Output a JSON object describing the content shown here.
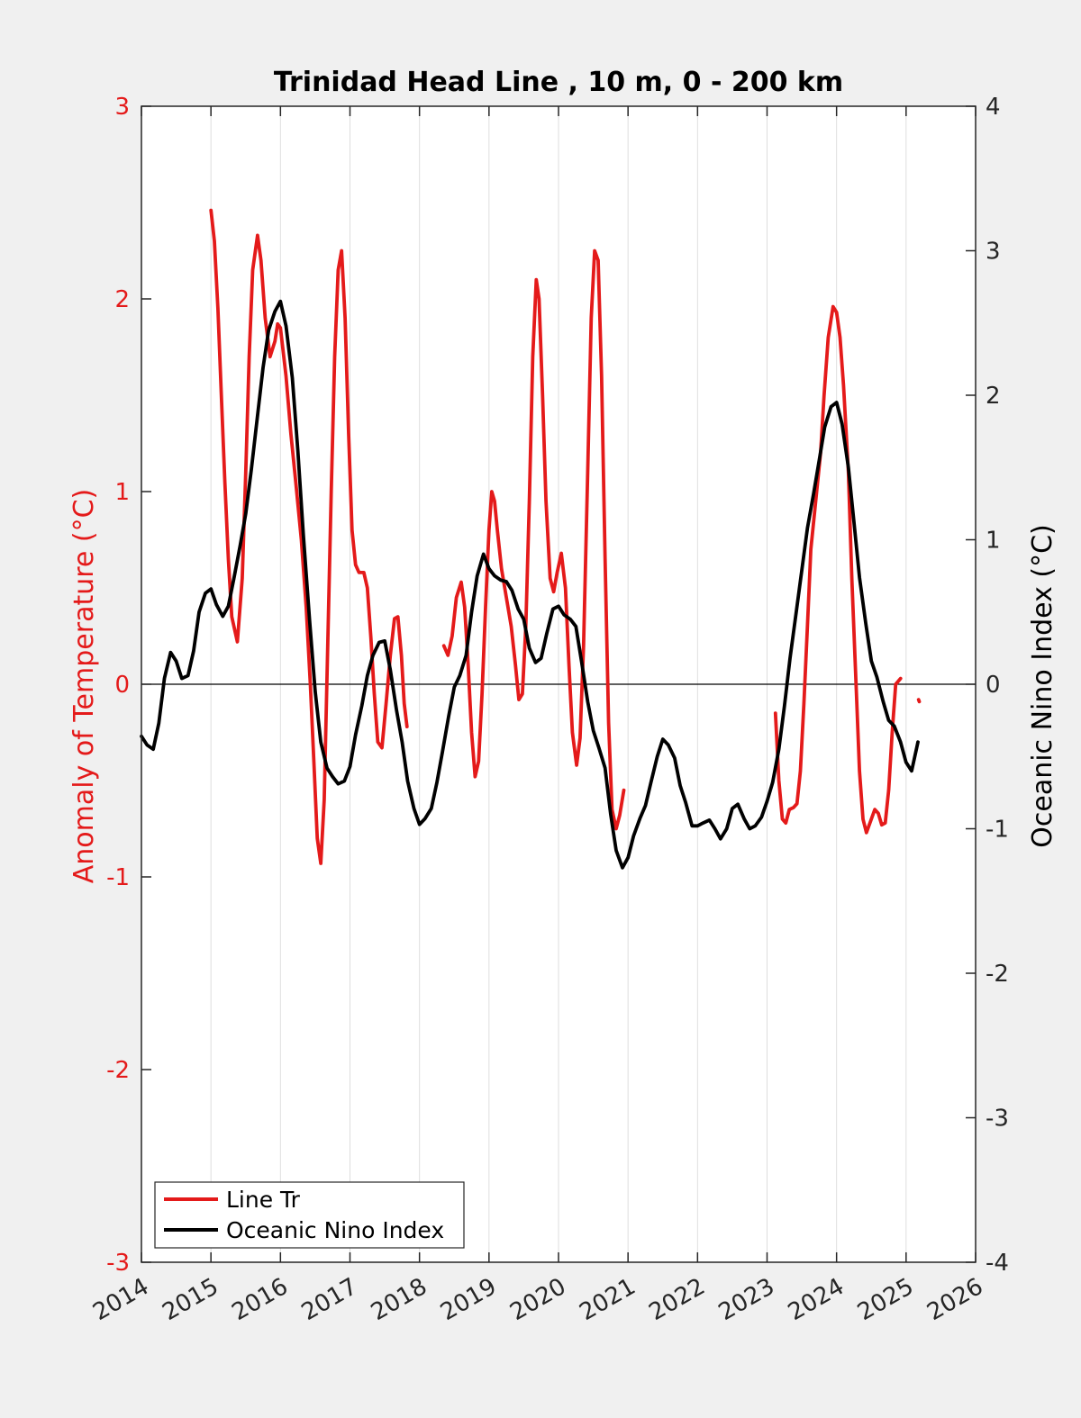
{
  "chart_data": {
    "type": "line",
    "title": "Trinidad Head Line , 10 m, 0 - 200 km",
    "xlabel": "",
    "xlim": [
      2014,
      2026
    ],
    "x_ticks": [
      "2014",
      "2015",
      "2016",
      "2017",
      "2018",
      "2019",
      "2020",
      "2021",
      "2022",
      "2023",
      "2024",
      "2025",
      "2026"
    ],
    "y_left": {
      "label": "Anomaly of Temperature (°C)",
      "ylim": [
        -3,
        3
      ],
      "ticks": [
        "-3",
        "-2",
        "-1",
        "0",
        "1",
        "2",
        "3"
      ]
    },
    "y_right": {
      "label": "Oceanic Nino Index (°C)",
      "ylim": [
        -4,
        4
      ],
      "ticks": [
        "-4",
        "-3",
        "-2",
        "-1",
        "0",
        "1",
        "2",
        "3",
        "4"
      ]
    },
    "grid": "vertical",
    "legend": "bottom-left",
    "series": [
      {
        "name": "Line Tr",
        "axis": "left",
        "color": "#e41a1a",
        "segments": [
          [
            [
              2015.0,
              2.46
            ],
            [
              2015.05,
              2.3
            ],
            [
              2015.1,
              1.95
            ],
            [
              2015.15,
              1.5
            ],
            [
              2015.2,
              1.05
            ],
            [
              2015.25,
              0.65
            ],
            [
              2015.3,
              0.35
            ],
            [
              2015.38,
              0.22
            ],
            [
              2015.45,
              0.55
            ],
            [
              2015.5,
              1.1
            ],
            [
              2015.55,
              1.7
            ],
            [
              2015.6,
              2.15
            ],
            [
              2015.67,
              2.33
            ],
            [
              2015.72,
              2.2
            ],
            [
              2015.78,
              1.9
            ],
            [
              2015.85,
              1.7
            ],
            [
              2015.92,
              1.78
            ],
            [
              2015.96,
              1.87
            ],
            [
              2016.0,
              1.85
            ],
            [
              2016.08,
              1.6
            ],
            [
              2016.15,
              1.3
            ],
            [
              2016.22,
              1.05
            ],
            [
              2016.3,
              0.75
            ],
            [
              2016.37,
              0.4
            ],
            [
              2016.43,
              0.0
            ],
            [
              2016.48,
              -0.4
            ],
            [
              2016.53,
              -0.8
            ],
            [
              2016.58,
              -0.93
            ],
            [
              2016.63,
              -0.6
            ],
            [
              2016.68,
              0.2
            ],
            [
              2016.73,
              1.0
            ],
            [
              2016.78,
              1.7
            ],
            [
              2016.83,
              2.15
            ],
            [
              2016.88,
              2.25
            ],
            [
              2016.93,
              1.9
            ],
            [
              2016.98,
              1.3
            ],
            [
              2017.03,
              0.8
            ],
            [
              2017.08,
              0.62
            ],
            [
              2017.13,
              0.58
            ],
            [
              2017.2,
              0.58
            ],
            [
              2017.25,
              0.5
            ],
            [
              2017.3,
              0.25
            ],
            [
              2017.35,
              -0.05
            ],
            [
              2017.4,
              -0.3
            ],
            [
              2017.46,
              -0.33
            ],
            [
              2017.52,
              -0.1
            ],
            [
              2017.58,
              0.15
            ],
            [
              2017.64,
              0.34
            ],
            [
              2017.69,
              0.35
            ],
            [
              2017.74,
              0.15
            ],
            [
              2017.78,
              -0.1
            ],
            [
              2017.82,
              -0.22
            ]
          ],
          [
            [
              2018.35,
              0.2
            ],
            [
              2018.41,
              0.15
            ],
            [
              2018.47,
              0.25
            ],
            [
              2018.53,
              0.45
            ],
            [
              2018.6,
              0.53
            ],
            [
              2018.65,
              0.4
            ],
            [
              2018.7,
              0.1
            ],
            [
              2018.75,
              -0.25
            ],
            [
              2018.8,
              -0.48
            ],
            [
              2018.85,
              -0.4
            ],
            [
              2018.9,
              -0.05
            ],
            [
              2018.95,
              0.4
            ],
            [
              2019.0,
              0.8
            ],
            [
              2019.04,
              1.0
            ],
            [
              2019.08,
              0.95
            ],
            [
              2019.12,
              0.8
            ],
            [
              2019.18,
              0.6
            ],
            [
              2019.25,
              0.45
            ],
            [
              2019.32,
              0.3
            ],
            [
              2019.38,
              0.1
            ],
            [
              2019.43,
              -0.08
            ],
            [
              2019.48,
              -0.05
            ],
            [
              2019.53,
              0.3
            ],
            [
              2019.58,
              0.95
            ],
            [
              2019.63,
              1.7
            ],
            [
              2019.68,
              2.1
            ],
            [
              2019.72,
              2.0
            ],
            [
              2019.77,
              1.5
            ],
            [
              2019.82,
              0.95
            ],
            [
              2019.88,
              0.55
            ],
            [
              2019.93,
              0.48
            ],
            [
              2019.98,
              0.58
            ],
            [
              2020.04,
              0.68
            ],
            [
              2020.1,
              0.5
            ],
            [
              2020.15,
              0.1
            ],
            [
              2020.2,
              -0.25
            ],
            [
              2020.26,
              -0.42
            ],
            [
              2020.31,
              -0.28
            ],
            [
              2020.36,
              0.2
            ],
            [
              2020.42,
              1.1
            ],
            [
              2020.47,
              1.9
            ],
            [
              2020.52,
              2.25
            ],
            [
              2020.57,
              2.2
            ],
            [
              2020.62,
              1.6
            ],
            [
              2020.67,
              0.65
            ],
            [
              2020.72,
              -0.2
            ],
            [
              2020.77,
              -0.65
            ],
            [
              2020.83,
              -0.75
            ],
            [
              2020.88,
              -0.68
            ],
            [
              2020.94,
              -0.55
            ]
          ],
          [
            [
              2023.12,
              -0.15
            ],
            [
              2023.17,
              -0.5
            ],
            [
              2023.22,
              -0.7
            ],
            [
              2023.27,
              -0.72
            ],
            [
              2023.32,
              -0.65
            ],
            [
              2023.38,
              -0.64
            ],
            [
              2023.43,
              -0.62
            ],
            [
              2023.48,
              -0.45
            ],
            [
              2023.53,
              -0.1
            ],
            [
              2023.58,
              0.3
            ],
            [
              2023.63,
              0.7
            ],
            [
              2023.7,
              0.95
            ],
            [
              2023.77,
              1.2
            ],
            [
              2023.82,
              1.5
            ],
            [
              2023.88,
              1.8
            ],
            [
              2023.95,
              1.96
            ],
            [
              2024.0,
              1.93
            ],
            [
              2024.05,
              1.8
            ],
            [
              2024.1,
              1.55
            ],
            [
              2024.17,
              1.1
            ],
            [
              2024.22,
              0.55
            ],
            [
              2024.28,
              0.0
            ],
            [
              2024.33,
              -0.45
            ],
            [
              2024.38,
              -0.7
            ],
            [
              2024.43,
              -0.77
            ],
            [
              2024.48,
              -0.72
            ],
            [
              2024.55,
              -0.65
            ],
            [
              2024.6,
              -0.67
            ],
            [
              2024.65,
              -0.73
            ],
            [
              2024.7,
              -0.72
            ],
            [
              2024.75,
              -0.55
            ],
            [
              2024.8,
              -0.25
            ],
            [
              2024.85,
              0.0
            ],
            [
              2024.92,
              0.03
            ]
          ],
          [
            [
              2025.18,
              -0.08
            ],
            [
              2025.19,
              -0.09
            ]
          ]
        ]
      },
      {
        "name": "Oceanic Nino Index",
        "axis": "right",
        "color": "#000000",
        "points": [
          [
            2014.0,
            -0.36
          ],
          [
            2014.08,
            -0.42
          ],
          [
            2014.17,
            -0.45
          ],
          [
            2014.25,
            -0.27
          ],
          [
            2014.33,
            0.04
          ],
          [
            2014.42,
            0.22
          ],
          [
            2014.5,
            0.16
          ],
          [
            2014.58,
            0.04
          ],
          [
            2014.67,
            0.06
          ],
          [
            2014.75,
            0.23
          ],
          [
            2014.83,
            0.5
          ],
          [
            2014.92,
            0.63
          ],
          [
            2015.0,
            0.66
          ],
          [
            2015.08,
            0.55
          ],
          [
            2015.17,
            0.47
          ],
          [
            2015.25,
            0.54
          ],
          [
            2015.33,
            0.73
          ],
          [
            2015.42,
            0.96
          ],
          [
            2015.5,
            1.18
          ],
          [
            2015.58,
            1.48
          ],
          [
            2015.67,
            1.86
          ],
          [
            2015.75,
            2.19
          ],
          [
            2015.83,
            2.45
          ],
          [
            2015.92,
            2.58
          ],
          [
            2016.0,
            2.65
          ],
          [
            2016.08,
            2.48
          ],
          [
            2016.17,
            2.12
          ],
          [
            2016.25,
            1.62
          ],
          [
            2016.33,
            1.03
          ],
          [
            2016.42,
            0.44
          ],
          [
            2016.5,
            -0.05
          ],
          [
            2016.58,
            -0.4
          ],
          [
            2016.67,
            -0.58
          ],
          [
            2016.75,
            -0.64
          ],
          [
            2016.83,
            -0.69
          ],
          [
            2016.92,
            -0.67
          ],
          [
            2017.0,
            -0.57
          ],
          [
            2017.08,
            -0.35
          ],
          [
            2017.17,
            -0.15
          ],
          [
            2017.25,
            0.06
          ],
          [
            2017.33,
            0.2
          ],
          [
            2017.42,
            0.29
          ],
          [
            2017.5,
            0.3
          ],
          [
            2017.58,
            0.1
          ],
          [
            2017.67,
            -0.18
          ],
          [
            2017.75,
            -0.4
          ],
          [
            2017.83,
            -0.67
          ],
          [
            2017.92,
            -0.86
          ],
          [
            2018.0,
            -0.97
          ],
          [
            2018.08,
            -0.93
          ],
          [
            2018.17,
            -0.86
          ],
          [
            2018.25,
            -0.68
          ],
          [
            2018.33,
            -0.47
          ],
          [
            2018.42,
            -0.22
          ],
          [
            2018.5,
            -0.02
          ],
          [
            2018.58,
            0.06
          ],
          [
            2018.67,
            0.2
          ],
          [
            2018.75,
            0.5
          ],
          [
            2018.83,
            0.75
          ],
          [
            2018.92,
            0.9
          ],
          [
            2019.0,
            0.8
          ],
          [
            2019.08,
            0.75
          ],
          [
            2019.17,
            0.72
          ],
          [
            2019.25,
            0.71
          ],
          [
            2019.33,
            0.65
          ],
          [
            2019.42,
            0.52
          ],
          [
            2019.5,
            0.45
          ],
          [
            2019.58,
            0.25
          ],
          [
            2019.67,
            0.15
          ],
          [
            2019.75,
            0.18
          ],
          [
            2019.83,
            0.35
          ],
          [
            2019.92,
            0.52
          ],
          [
            2020.0,
            0.54
          ],
          [
            2020.08,
            0.48
          ],
          [
            2020.17,
            0.45
          ],
          [
            2020.25,
            0.4
          ],
          [
            2020.33,
            0.16
          ],
          [
            2020.42,
            -0.12
          ],
          [
            2020.5,
            -0.32
          ],
          [
            2020.58,
            -0.44
          ],
          [
            2020.67,
            -0.58
          ],
          [
            2020.75,
            -0.9
          ],
          [
            2020.83,
            -1.15
          ],
          [
            2020.92,
            -1.27
          ],
          [
            2021.0,
            -1.2
          ],
          [
            2021.08,
            -1.05
          ],
          [
            2021.17,
            -0.93
          ],
          [
            2021.25,
            -0.84
          ],
          [
            2021.33,
            -0.68
          ],
          [
            2021.42,
            -0.5
          ],
          [
            2021.5,
            -0.38
          ],
          [
            2021.58,
            -0.42
          ],
          [
            2021.67,
            -0.51
          ],
          [
            2021.75,
            -0.7
          ],
          [
            2021.83,
            -0.82
          ],
          [
            2021.92,
            -0.98
          ],
          [
            2022.0,
            -0.98
          ],
          [
            2022.08,
            -0.96
          ],
          [
            2022.17,
            -0.94
          ],
          [
            2022.25,
            -1.0
          ],
          [
            2022.33,
            -1.07
          ],
          [
            2022.42,
            -1.0
          ],
          [
            2022.5,
            -0.86
          ],
          [
            2022.58,
            -0.83
          ],
          [
            2022.67,
            -0.93
          ],
          [
            2022.75,
            -1.0
          ],
          [
            2022.83,
            -0.98
          ],
          [
            2022.92,
            -0.92
          ],
          [
            2023.0,
            -0.81
          ],
          [
            2023.08,
            -0.68
          ],
          [
            2023.17,
            -0.45
          ],
          [
            2023.25,
            -0.15
          ],
          [
            2023.33,
            0.18
          ],
          [
            2023.42,
            0.5
          ],
          [
            2023.5,
            0.79
          ],
          [
            2023.58,
            1.08
          ],
          [
            2023.67,
            1.32
          ],
          [
            2023.75,
            1.55
          ],
          [
            2023.83,
            1.78
          ],
          [
            2023.92,
            1.92
          ],
          [
            2024.0,
            1.95
          ],
          [
            2024.08,
            1.8
          ],
          [
            2024.17,
            1.5
          ],
          [
            2024.25,
            1.12
          ],
          [
            2024.33,
            0.74
          ],
          [
            2024.42,
            0.42
          ],
          [
            2024.5,
            0.16
          ],
          [
            2024.58,
            0.05
          ],
          [
            2024.67,
            -0.12
          ],
          [
            2024.75,
            -0.25
          ],
          [
            2024.83,
            -0.29
          ],
          [
            2024.92,
            -0.4
          ],
          [
            2025.0,
            -0.54
          ],
          [
            2025.08,
            -0.6
          ],
          [
            2025.17,
            -0.4
          ]
        ]
      }
    ]
  }
}
